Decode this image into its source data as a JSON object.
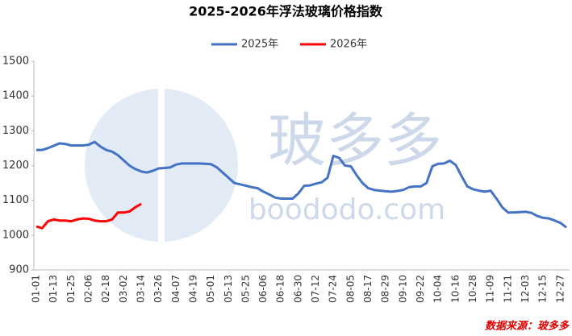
{
  "chart_data": {
    "type": "line",
    "title": "2025-2026年浮法玻璃价格指数",
    "source": "数据来源：玻多多",
    "watermark": [
      "玻多多",
      "boododo.com"
    ],
    "categories": [
      "01-01",
      null,
      null,
      "01-13",
      null,
      null,
      "01-25",
      null,
      null,
      "02-06",
      null,
      null,
      "02-18",
      null,
      null,
      "03-02",
      null,
      null,
      "03-14",
      null,
      null,
      "03-26",
      null,
      null,
      "04-07",
      null,
      null,
      "04-19",
      null,
      null,
      "05-01",
      null,
      null,
      "05-13",
      null,
      null,
      "05-25",
      null,
      null,
      "06-06",
      null,
      null,
      "06-18",
      null,
      null,
      "06-30",
      null,
      null,
      "07-12",
      null,
      null,
      "07-24",
      null,
      null,
      "08-05",
      null,
      null,
      "08-17",
      null,
      null,
      "08-29",
      null,
      null,
      "09-10",
      null,
      null,
      "09-22",
      null,
      null,
      "10-04",
      null,
      null,
      "10-16",
      null,
      null,
      "10-28",
      null,
      null,
      "11-09",
      null,
      null,
      "11-21",
      null,
      null,
      "12-03",
      null,
      null,
      "12-15",
      null,
      null,
      "12-27",
      null
    ],
    "series": [
      {
        "name": "2025年",
        "color": "#4472c4",
        "values": [
          1245,
          1245,
          1250,
          1257,
          1264,
          1262,
          1258,
          1258,
          1258,
          1260,
          1268,
          1255,
          1245,
          1240,
          1230,
          1215,
          1200,
          1190,
          1183,
          1180,
          1185,
          1192,
          1193,
          1195,
          1203,
          1206,
          1206,
          1206,
          1206,
          1205,
          1204,
          1195,
          1180,
          1165,
          1150,
          1146,
          1142,
          1138,
          1135,
          1125,
          1117,
          1108,
          1105,
          1105,
          1105,
          1120,
          1142,
          1143,
          1148,
          1152,
          1165,
          1228,
          1222,
          1200,
          1198,
          1172,
          1150,
          1135,
          1130,
          1128,
          1126,
          1125,
          1127,
          1130,
          1138,
          1140,
          1140,
          1150,
          1198,
          1205,
          1206,
          1214,
          1202,
          1170,
          1140,
          1132,
          1128,
          1125,
          1128,
          1105,
          1080,
          1065,
          1065,
          1066,
          1067,
          1064,
          1055,
          1050,
          1048,
          1042,
          1035,
          1022
        ]
      },
      {
        "name": "2026年",
        "color": "#ff0000",
        "values": [
          1025,
          1020,
          1040,
          1045,
          1042,
          1042,
          1040,
          1045,
          1048,
          1047,
          1042,
          1040,
          1040,
          1045,
          1065,
          1065,
          1068,
          1080,
          1090,
          null,
          null,
          null,
          null,
          null,
          null,
          null,
          null,
          null,
          null,
          null,
          null,
          null,
          null,
          null,
          null,
          null,
          null,
          null,
          null,
          null,
          null,
          null,
          null,
          null,
          null,
          null,
          null,
          null,
          null,
          null,
          null,
          null,
          null,
          null,
          null,
          null,
          null,
          null,
          null,
          null,
          null,
          null,
          null,
          null,
          null,
          null,
          null,
          null,
          null,
          null,
          null,
          null,
          null,
          null,
          null,
          null,
          null,
          null,
          null,
          null,
          null,
          null,
          null,
          null,
          null,
          null,
          null,
          null,
          null,
          null,
          null,
          null
        ]
      }
    ],
    "ylim": [
      900,
      1500
    ],
    "yticks": [
      900,
      1000,
      1100,
      1200,
      1300,
      1400,
      1500
    ],
    "grid": false,
    "legend": "top"
  }
}
